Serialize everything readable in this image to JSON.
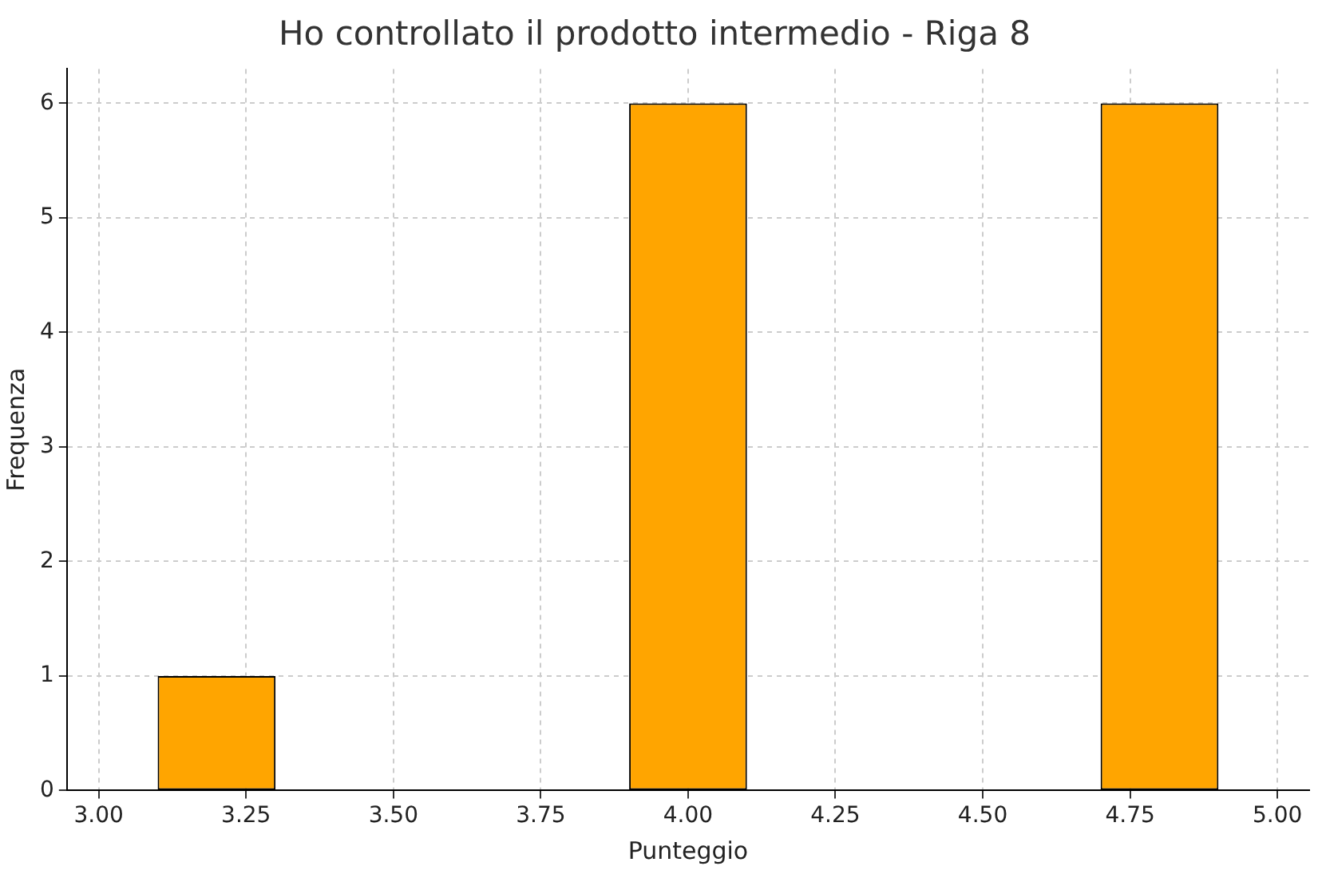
{
  "chart_data": {
    "type": "histogram",
    "title": "Ho controllato il prodotto intermedio - Riga 8",
    "xlabel": "Punteggio",
    "ylabel": "Frequenza",
    "bins": [
      3.0,
      3.4,
      3.8,
      4.2,
      4.6,
      5.0
    ],
    "values": [
      1,
      0,
      6,
      0,
      6
    ],
    "color": "#ffa500",
    "xlim": [
      2.946,
      5.054
    ],
    "ylim": [
      0,
      6.3
    ],
    "xticks": [
      {
        "value": 3,
        "label": "3.00"
      },
      {
        "value": 3.25,
        "label": "3.25"
      },
      {
        "value": 3.5,
        "label": "3.50"
      },
      {
        "value": 3.75,
        "label": "3.75"
      },
      {
        "value": 4,
        "label": "4.00"
      },
      {
        "value": 4.25,
        "label": "4.25"
      },
      {
        "value": 4.5,
        "label": "4.50"
      },
      {
        "value": 4.75,
        "label": "4.75"
      },
      {
        "value": 5,
        "label": "5.00"
      }
    ],
    "yticks": [
      0,
      1,
      2,
      3,
      4,
      5,
      6
    ],
    "grid": true
  }
}
